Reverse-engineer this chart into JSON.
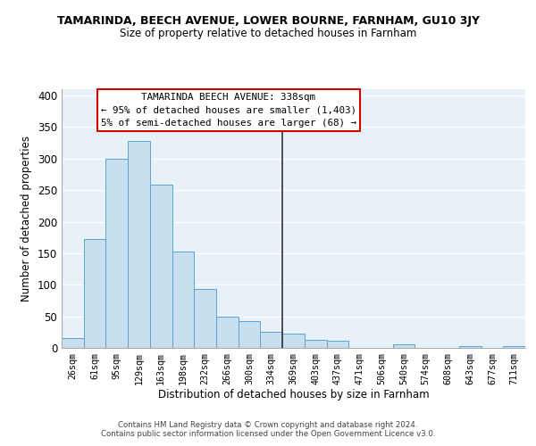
{
  "title": "TAMARINDA, BEECH AVENUE, LOWER BOURNE, FARNHAM, GU10 3JY",
  "subtitle": "Size of property relative to detached houses in Farnham",
  "xlabel": "Distribution of detached houses by size in Farnham",
  "ylabel": "Number of detached properties",
  "bar_labels": [
    "26sqm",
    "61sqm",
    "95sqm",
    "129sqm",
    "163sqm",
    "198sqm",
    "232sqm",
    "266sqm",
    "300sqm",
    "334sqm",
    "369sqm",
    "403sqm",
    "437sqm",
    "471sqm",
    "506sqm",
    "540sqm",
    "574sqm",
    "608sqm",
    "643sqm",
    "677sqm",
    "711sqm"
  ],
  "bar_values": [
    15,
    172,
    300,
    328,
    259,
    152,
    94,
    49,
    43,
    26,
    23,
    13,
    11,
    0,
    0,
    5,
    0,
    0,
    3,
    0,
    3
  ],
  "bar_color": "#c8dff0",
  "bar_edge_color": "#5ba3d0",
  "vline_x": 9.5,
  "vline_color": "#333333",
  "annotation_title": "TAMARINDA BEECH AVENUE: 338sqm",
  "annotation_line1": "← 95% of detached houses are smaller (1,403)",
  "annotation_line2": "5% of semi-detached houses are larger (68) →",
  "annotation_box_color": "#ffffff",
  "annotation_border_color": "#cc0000",
  "ylim": [
    0,
    410
  ],
  "yticks": [
    0,
    50,
    100,
    150,
    200,
    250,
    300,
    350,
    400
  ],
  "footer1": "Contains HM Land Registry data © Crown copyright and database right 2024.",
  "footer2": "Contains public sector information licensed under the Open Government Licence v3.0.",
  "background_color": "#ffffff",
  "axes_bg_color": "#e8f0f8",
  "grid_color": "#ffffff"
}
